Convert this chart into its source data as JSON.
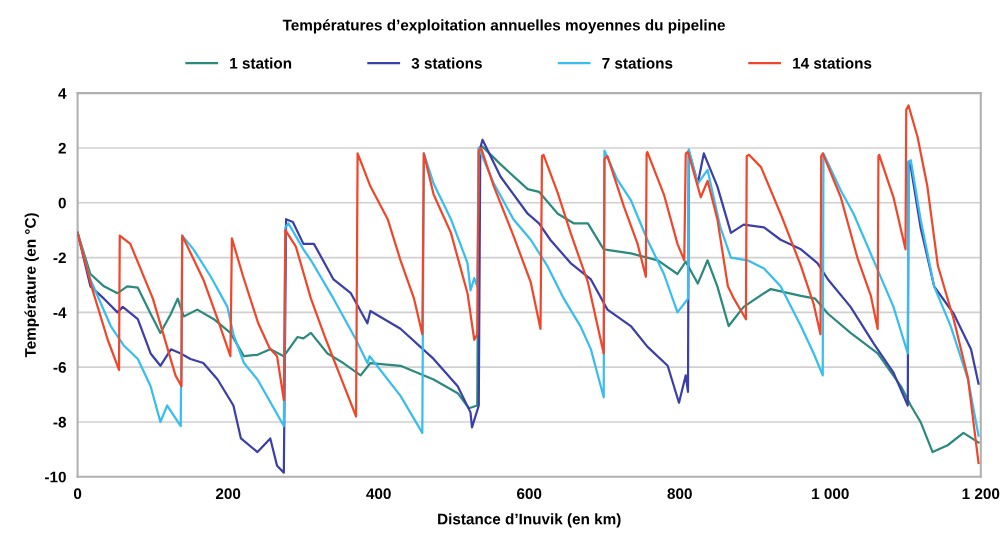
{
  "chart_data": {
    "type": "line",
    "title": "Températures d’exploitation annuelles moyennes du pipeline",
    "xlabel": "Distance d’Inuvik (en km)",
    "ylabel": "Température (en °C)",
    "xlim": [
      0,
      1200
    ],
    "xticks": [
      0,
      200,
      400,
      600,
      800,
      {
        "value": 1000,
        "label": "1 000"
      },
      {
        "value": 1200,
        "label": "1 200"
      }
    ],
    "ylim": [
      -10,
      4
    ],
    "yticks": [
      -10,
      -8,
      -6,
      -4,
      -2,
      0,
      2,
      4
    ],
    "grid": "y",
    "legend": "top",
    "marker": "none",
    "line_style": "solid",
    "series": [
      {
        "name": "1 station",
        "color": "#2a8a7e",
        "x": [
          0,
          17,
          35,
          53,
          66,
          80,
          97,
          110,
          124,
          133,
          141,
          159,
          181,
          203,
          221,
          239,
          256,
          274,
          292,
          300,
          310,
          332,
          353,
          376,
          389,
          429,
          473,
          505,
          520,
          531,
          533,
          538,
          562,
          598,
          613,
          638,
          659,
          678,
          699,
          735,
          771,
          797,
          808,
          824,
          837,
          850,
          865,
          885,
          912,
          921,
          961,
          980,
          997,
          1027,
          1063,
          1094,
          1107,
          1120,
          1136,
          1156,
          1177,
          1197
        ],
        "values": [
          -1.1,
          -2.6,
          -3.05,
          -3.3,
          -3.05,
          -3.1,
          -4.05,
          -4.75,
          -4.05,
          -3.5,
          -4.15,
          -3.9,
          -4.25,
          -4.75,
          -5.6,
          -5.55,
          -5.35,
          -5.6,
          -4.9,
          -4.95,
          -4.75,
          -5.5,
          -5.85,
          -6.3,
          -5.85,
          -5.95,
          -6.45,
          -6.95,
          -7.5,
          -7.4,
          2.0,
          2.05,
          1.4,
          0.5,
          0.4,
          -0.4,
          -0.75,
          -0.75,
          -1.7,
          -1.85,
          -2.1,
          -2.6,
          -2.15,
          -2.95,
          -2.1,
          -3.05,
          -4.5,
          -3.8,
          -3.3,
          -3.15,
          -3.4,
          -3.5,
          -4.05,
          -4.75,
          -5.5,
          -6.7,
          -7.4,
          -8.0,
          -9.1,
          -8.85,
          -8.4,
          -8.75
        ]
      },
      {
        "name": "3 stations",
        "color": "#3b3fa8",
        "x": [
          0,
          17,
          35,
          53,
          60,
          80,
          97,
          110,
          124,
          137,
          150,
          167,
          186,
          207,
          217,
          239,
          256,
          265,
          274,
          277,
          286,
          300,
          314,
          340,
          363,
          385,
          389,
          429,
          473,
          505,
          522,
          524,
          533,
          535,
          538,
          562,
          598,
          613,
          628,
          655,
          682,
          704,
          735,
          757,
          784,
          799,
          808,
          811,
          812,
          824,
          832,
          850,
          868,
          885,
          912,
          934,
          961,
          983,
          997,
          1027,
          1058,
          1084,
          1103,
          1104,
          1107,
          1120,
          1138,
          1164,
          1187,
          1197
        ],
        "values": [
          -1.1,
          -3.05,
          -3.5,
          -4.0,
          -3.8,
          -4.25,
          -5.5,
          -5.95,
          -5.35,
          -5.5,
          -5.7,
          -5.85,
          -6.45,
          -7.4,
          -8.6,
          -9.1,
          -8.6,
          -9.6,
          -9.85,
          -0.6,
          -0.7,
          -1.5,
          -1.5,
          -2.8,
          -3.3,
          -4.4,
          -3.95,
          -4.6,
          -5.7,
          -6.7,
          -7.65,
          -8.2,
          -7.4,
          2.0,
          2.3,
          0.95,
          -0.4,
          -0.75,
          -1.35,
          -2.2,
          -2.8,
          -3.9,
          -4.5,
          -5.25,
          -5.95,
          -7.3,
          -6.3,
          -6.9,
          1.9,
          0.7,
          1.8,
          0.6,
          -1.1,
          -0.8,
          -0.9,
          -1.35,
          -1.7,
          -2.2,
          -2.8,
          -3.8,
          -5.15,
          -6.2,
          -7.4,
          1.5,
          1.3,
          -0.9,
          -3.05,
          -4.05,
          -5.35,
          -6.6
        ]
      },
      {
        "name": "7 stations",
        "color": "#38bdf0",
        "x": [
          0,
          17,
          44,
          61,
          80,
          97,
          110,
          119,
          137,
          139,
          154,
          177,
          199,
          207,
          221,
          239,
          274,
          276,
          280,
          300,
          310,
          340,
          370,
          385,
          388,
          429,
          458,
          460,
          473,
          496,
          518,
          522,
          527,
          531,
          533,
          553,
          579,
          602,
          624,
          646,
          668,
          682,
          699,
          700,
          717,
          735,
          757,
          779,
          797,
          811,
          812,
          824,
          837,
          854,
          868,
          890,
          912,
          934,
          961,
          978,
          990,
          991,
          1014,
          1031,
          1063,
          1084,
          1103,
          1104,
          1107,
          1120,
          1138,
          1160,
          1183,
          1197
        ],
        "values": [
          -1.1,
          -2.8,
          -4.5,
          -5.2,
          -5.7,
          -6.7,
          -8.0,
          -7.4,
          -8.15,
          -1.2,
          -1.7,
          -2.7,
          -3.8,
          -4.8,
          -5.85,
          -6.45,
          -8.15,
          -0.9,
          -0.75,
          -1.7,
          -2.1,
          -3.5,
          -5.0,
          -5.85,
          -5.6,
          -7.05,
          -8.4,
          1.8,
          0.7,
          -0.6,
          -2.2,
          -3.2,
          -2.75,
          -3.05,
          2.0,
          0.7,
          -0.6,
          -1.35,
          -2.3,
          -3.5,
          -4.5,
          -5.35,
          -7.1,
          1.9,
          0.85,
          0.1,
          -1.35,
          -2.6,
          -4.0,
          -3.5,
          1.95,
          0.7,
          1.2,
          -0.9,
          -2.0,
          -2.1,
          -2.4,
          -3.05,
          -4.5,
          -5.5,
          -6.3,
          1.8,
          0.45,
          -0.4,
          -2.45,
          -3.8,
          -5.5,
          1.5,
          1.55,
          -0.6,
          -3.05,
          -4.5,
          -6.45,
          -8.5
        ]
      },
      {
        "name": "14 stations",
        "color": "#f0462a",
        "x": [
          0,
          20,
          40,
          55,
          56,
          70,
          100,
          130,
          138,
          139,
          167,
          186,
          203,
          205,
          220,
          240,
          255,
          265,
          274,
          276,
          290,
          310,
          330,
          350,
          370,
          372,
          389,
          412,
          429,
          447,
          458,
          460,
          473,
          496,
          518,
          527,
          531,
          533,
          536,
          553,
          579,
          602,
          615,
          617,
          619,
          638,
          655,
          678,
          699,
          700,
          704,
          726,
          744,
          755,
          756,
          757,
          779,
          797,
          806,
          808,
          811,
          828,
          837,
          850,
          864,
          872,
          888,
          889,
          892,
          908,
          934,
          961,
          978,
          987,
          988,
          990,
          1014,
          1036,
          1054,
          1063,
          1064,
          1065,
          1084,
          1100,
          1101,
          1104,
          1116,
          1129,
          1143,
          1164,
          1183,
          1197
        ],
        "values": [
          -1.1,
          -3.2,
          -5.0,
          -6.1,
          -1.2,
          -1.5,
          -3.5,
          -6.3,
          -6.7,
          -1.2,
          -2.8,
          -4.25,
          -5.6,
          -1.3,
          -2.7,
          -4.4,
          -5.3,
          -5.6,
          -7.2,
          -1.0,
          -1.6,
          -3.5,
          -5.0,
          -6.4,
          -7.8,
          1.8,
          0.6,
          -0.6,
          -2.1,
          -3.5,
          -4.8,
          1.8,
          0.3,
          -1.1,
          -3.3,
          -5.0,
          -4.8,
          1.9,
          2.0,
          0.6,
          -1.2,
          -2.9,
          -4.6,
          1.7,
          1.75,
          0.35,
          -1.1,
          -2.9,
          -5.5,
          1.6,
          1.7,
          -0.15,
          -1.5,
          -2.7,
          1.8,
          1.85,
          0.3,
          -1.5,
          -2.1,
          1.8,
          1.85,
          0.2,
          0.8,
          -0.6,
          -3.05,
          -3.5,
          -4.25,
          1.7,
          1.75,
          1.3,
          -0.4,
          -2.3,
          -3.7,
          -4.8,
          1.7,
          1.8,
          0.2,
          -2.0,
          -3.4,
          -4.6,
          1.7,
          1.75,
          0.2,
          -1.7,
          3.4,
          3.55,
          2.4,
          0.6,
          -2.3,
          -4.25,
          -6.4,
          -9.5
        ]
      }
    ]
  }
}
